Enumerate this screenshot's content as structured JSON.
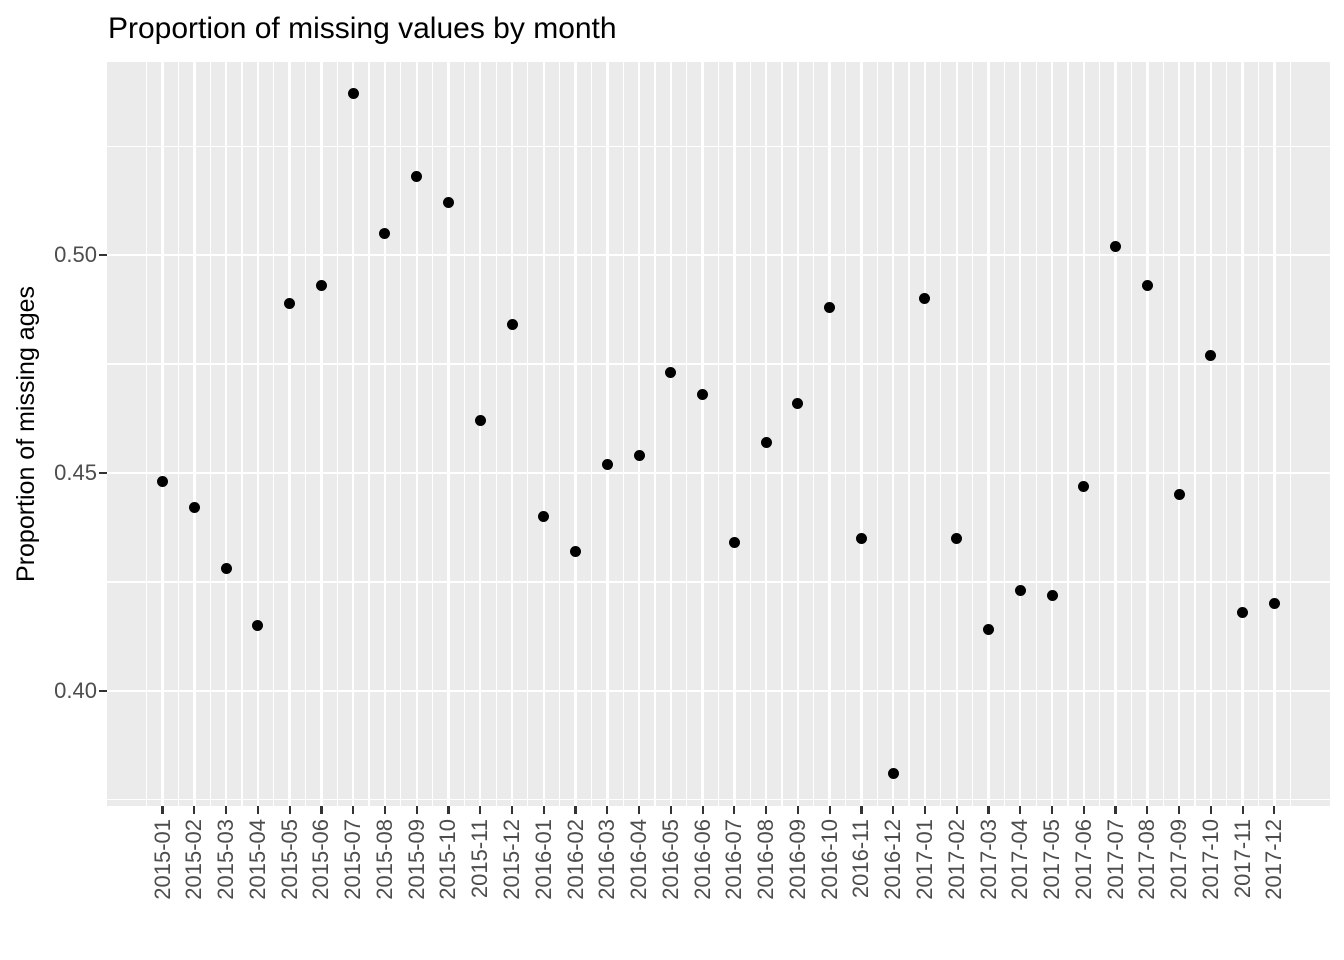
{
  "chart_data": {
    "type": "scatter",
    "title": "Proportion of missing values by month",
    "xlabel": "",
    "ylabel": "Proportion of missing ages",
    "categories": [
      "2015-01",
      "2015-02",
      "2015-03",
      "2015-04",
      "2015-05",
      "2015-06",
      "2015-07",
      "2015-08",
      "2015-09",
      "2015-10",
      "2015-11",
      "2015-12",
      "2016-01",
      "2016-02",
      "2016-03",
      "2016-04",
      "2016-05",
      "2016-06",
      "2016-07",
      "2016-08",
      "2016-09",
      "2016-10",
      "2016-11",
      "2016-12",
      "2017-01",
      "2017-02",
      "2017-03",
      "2017-04",
      "2017-05",
      "2017-06",
      "2017-07",
      "2017-08",
      "2017-09",
      "2017-10",
      "2017-11",
      "2017-12"
    ],
    "values": [
      0.448,
      0.442,
      0.428,
      0.415,
      0.489,
      0.493,
      0.537,
      0.505,
      0.518,
      0.512,
      0.462,
      0.484,
      0.44,
      0.432,
      0.452,
      0.454,
      0.473,
      0.468,
      0.434,
      0.457,
      0.466,
      0.488,
      0.435,
      0.381,
      0.49,
      0.435,
      0.414,
      0.423,
      0.422,
      0.447,
      0.502,
      0.493,
      0.445,
      0.477,
      0.418,
      0.42
    ],
    "y_ticks": [
      0.4,
      0.45,
      0.5
    ],
    "y_tick_labels": [
      "0.40",
      "0.45",
      "0.50"
    ],
    "y_minor_ticks": [
      0.375,
      0.425,
      0.475,
      0.525
    ],
    "ylim": [
      0.3736,
      0.5443
    ],
    "xlim_units": [
      -1.75,
      36.75
    ],
    "grid": true,
    "legend": "none",
    "colors": {
      "point": "#000000",
      "panel_background": "#EBEBEB",
      "gridline": "#FFFFFF",
      "tick_mark": "#333333",
      "tick_label": "#4D4D4D",
      "title": "#000000"
    }
  }
}
